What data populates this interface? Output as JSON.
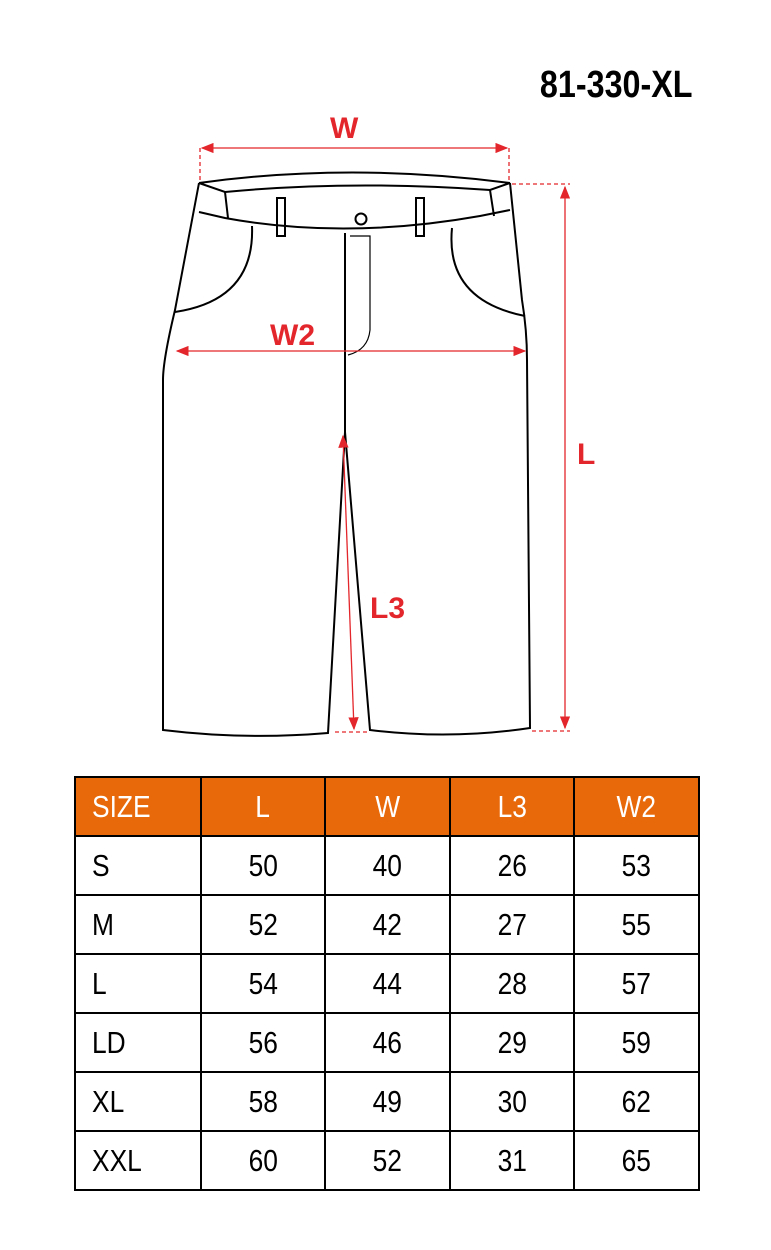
{
  "product_code": "81-330-XL",
  "dimension_labels": {
    "w": "W",
    "w2": "W2",
    "l": "L",
    "l3": "L3"
  },
  "colors": {
    "header": "#e8690a",
    "dimension": "#e3262b"
  },
  "table": {
    "headers": [
      "SIZE",
      "L",
      "W",
      "L3",
      "W2"
    ],
    "rows": [
      [
        "S",
        "50",
        "40",
        "26",
        "53"
      ],
      [
        "M",
        "52",
        "42",
        "27",
        "55"
      ],
      [
        "L",
        "54",
        "44",
        "28",
        "57"
      ],
      [
        "LD",
        "56",
        "46",
        "29",
        "59"
      ],
      [
        "XL",
        "58",
        "49",
        "30",
        "62"
      ],
      [
        "XXL",
        "60",
        "52",
        "31",
        "65"
      ]
    ]
  }
}
